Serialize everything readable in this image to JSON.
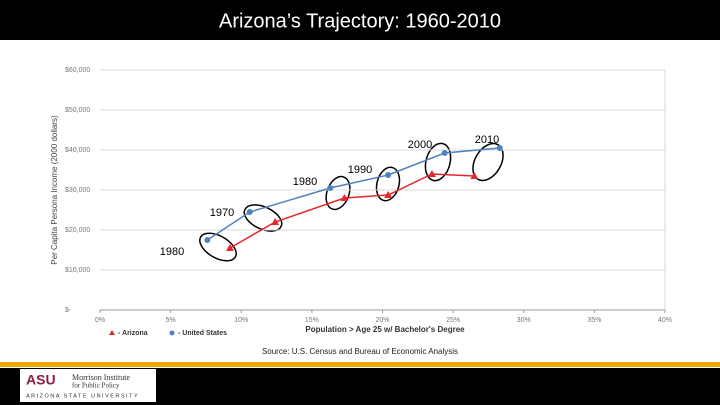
{
  "chart_data": {
    "type": "line",
    "title": "Arizona’s Trajectory: 1960-2010",
    "x_label": "Population > Age 25 w/ Bachelor's Degree",
    "y_label": "Per Capita Persona Income (2000 dollars)",
    "source": "Source: U.S. Census and Bureau of Economic Analysis",
    "xlim": [
      0,
      40
    ],
    "xticks": [
      {
        "value": 0,
        "label": "0%"
      },
      {
        "value": 5,
        "label": "5%"
      },
      {
        "value": 10,
        "label": "10%"
      },
      {
        "value": 15,
        "label": "15%"
      },
      {
        "value": 20,
        "label": "20%"
      },
      {
        "value": 25,
        "label": "25%"
      },
      {
        "value": 30,
        "label": "30%"
      },
      {
        "value": 35,
        "label": "35%"
      },
      {
        "value": 40,
        "label": "40%"
      }
    ],
    "ylim": [
      0,
      60000
    ],
    "yticks": [
      {
        "value": 0,
        "label": "$-"
      },
      {
        "value": 10000,
        "label": "$10,000"
      },
      {
        "value": 20000,
        "label": "$20,000"
      },
      {
        "value": 30000,
        "label": "$30,000"
      },
      {
        "value": 40000,
        "label": "$40,000"
      },
      {
        "value": 50000,
        "label": "$50,000"
      },
      {
        "value": 60000,
        "label": "$60,000"
      }
    ],
    "grid": true,
    "series": [
      {
        "name": "- Arizona",
        "color": "#e8262b",
        "marker": "triangle",
        "x": [
          9.2,
          12.4,
          17.3,
          20.4,
          23.5,
          26.5
        ],
        "values": [
          15500,
          22000,
          28000,
          28750,
          34000,
          33500
        ]
      },
      {
        "name": "- United States",
        "color": "#4f81bd",
        "marker": "circle",
        "x": [
          7.6,
          10.6,
          16.3,
          20.4,
          24.4,
          28.3
        ],
        "values": [
          17500,
          24500,
          30500,
          33750,
          39250,
          40500
        ]
      }
    ],
    "annotations": [
      "1980",
      "1970",
      "1980",
      "1990",
      "2000",
      "2010"
    ]
  },
  "footer": {
    "logo": "ASU",
    "org_line1": "Morrison Institute",
    "org_line2": "for Public Policy",
    "university": "ARIZONA STATE UNIVERSITY"
  }
}
